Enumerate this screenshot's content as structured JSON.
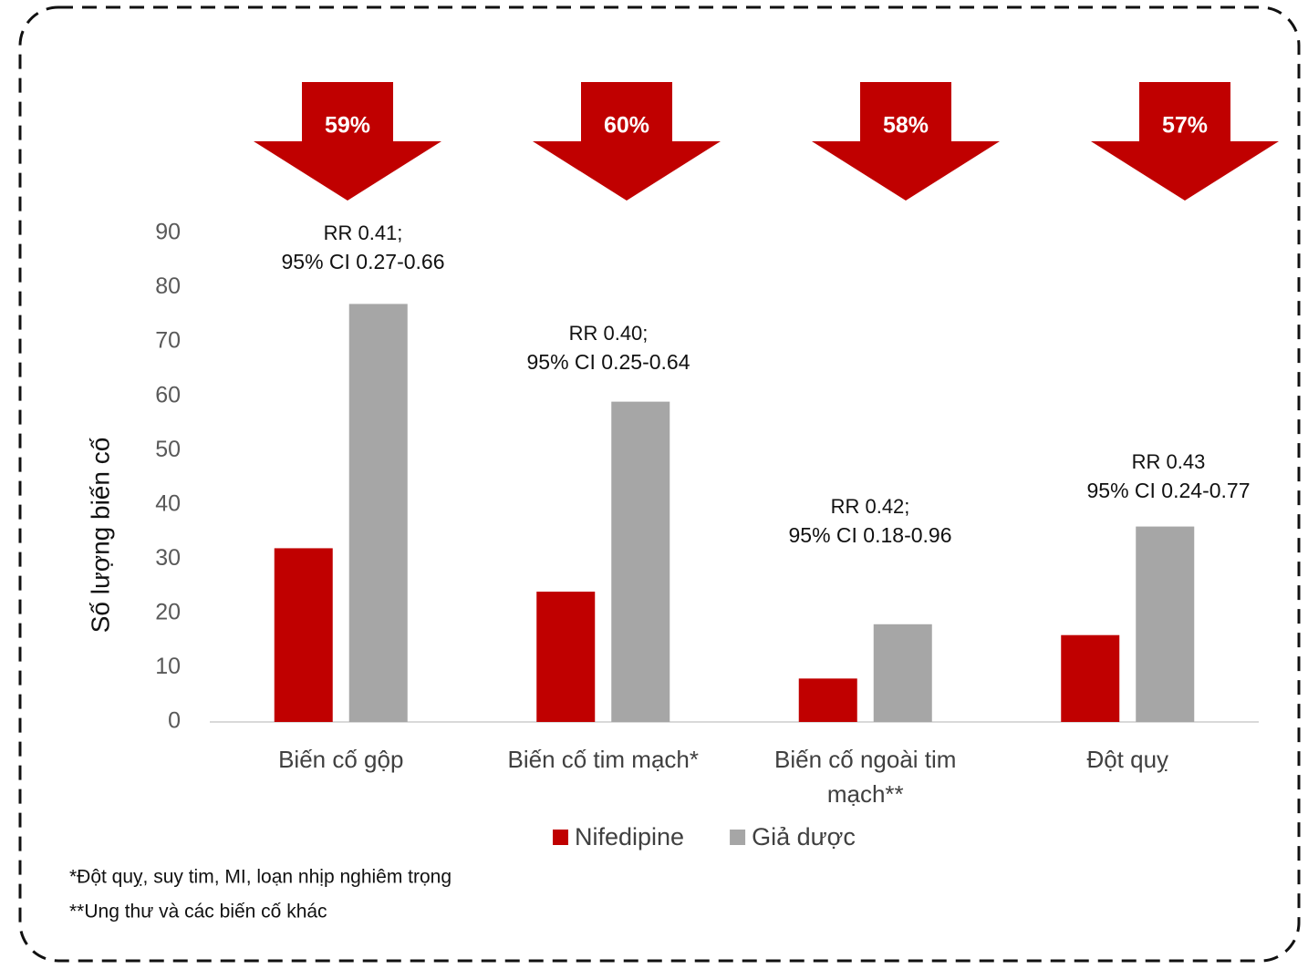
{
  "chart_data": {
    "type": "bar",
    "y_label": "Số lượng biến cố",
    "categories": [
      "Biến cố gộp",
      "Biến cố tim mạch*",
      "Biến cố ngoài tim mạch**",
      "Đột quỵ"
    ],
    "series": [
      {
        "name": "Nifedipine",
        "color": "#c00000",
        "values": [
          32,
          24,
          8,
          16
        ]
      },
      {
        "name": "Giả dược",
        "color": "#a6a6a6",
        "values": [
          77,
          59,
          18,
          36
        ]
      }
    ],
    "ylim": [
      0,
      90
    ],
    "yticks": [
      0,
      10,
      20,
      30,
      40,
      50,
      60,
      70,
      80,
      90
    ],
    "reduction_labels": [
      "59%",
      "60%",
      "58%",
      "57%"
    ],
    "annotations": [
      [
        "RR 0.41;",
        "95% CI 0.27-0.66"
      ],
      [
        "RR 0.40;",
        "95% CI 0.25-0.64"
      ],
      [
        "RR 0.42;",
        "95% CI 0.18-0.96"
      ],
      [
        "RR 0.43",
        "95% CI 0.24-0.77"
      ]
    ],
    "footnotes": [
      "*Đột quỵ, suy tim, MI, loạn nhịp nghiêm trọng",
      "**Ung thư và các biến cố khác"
    ]
  }
}
